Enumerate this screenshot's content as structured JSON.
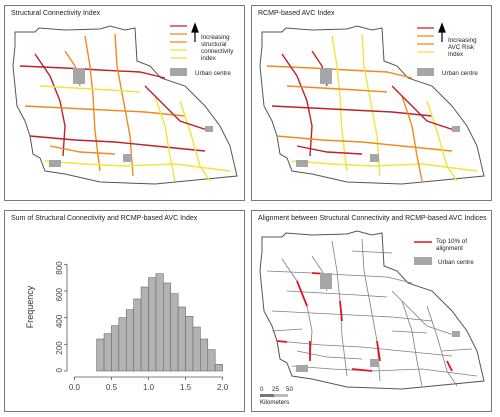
{
  "panels": {
    "p1": {
      "title": "Structural Connectivity Index",
      "legend": [
        "Increasing",
        "structural",
        "connectivity",
        "index"
      ],
      "urban": "Urban centre"
    },
    "p2": {
      "title": "RCMP-based AVC Index",
      "legend": [
        "Increasing",
        "AVC Risk",
        "Index"
      ],
      "urban": "Urban centre"
    },
    "p3": {
      "title": "Sum of Structural Connectivity and RCMP-based AVC Index"
    },
    "p4": {
      "title": "Alignment between Structural Connectivity and RCMP-based AVC Indices",
      "legend": [
        "Top 10% of",
        "alignment"
      ],
      "urban": "Urban centre",
      "scale_ticks": [
        "0",
        "25",
        "50"
      ],
      "scale_unit": "Kilometers"
    }
  },
  "colors": {
    "road_red": "#c0202a",
    "road_orange": "#f08a1c",
    "road_yellow": "#f2e43a",
    "urban": "#a6a6a6",
    "bar_fill": "#b3b3b3",
    "network_gray": "#7f7f7f",
    "alignment_red": "#e0151f"
  },
  "chart_data": {
    "type": "bar",
    "ylabel": "Frequency",
    "xlim": [
      -0.1,
      2.1
    ],
    "ylim": [
      0,
      900
    ],
    "x_ticks": [
      "0.0",
      "0.5",
      "1.0",
      "1.5",
      "2.0"
    ],
    "y_ticks": [
      "0",
      "200",
      "400",
      "600",
      "800"
    ],
    "bin_width": 0.1,
    "bin_starts": [
      0.3,
      0.4,
      0.5,
      0.6,
      0.7,
      0.8,
      0.9,
      1.0,
      1.1,
      1.2,
      1.3,
      1.4,
      1.5,
      1.6,
      1.7,
      1.8,
      1.9
    ],
    "values": [
      240,
      280,
      340,
      400,
      460,
      540,
      630,
      700,
      730,
      660,
      580,
      480,
      410,
      330,
      240,
      160,
      50
    ]
  }
}
